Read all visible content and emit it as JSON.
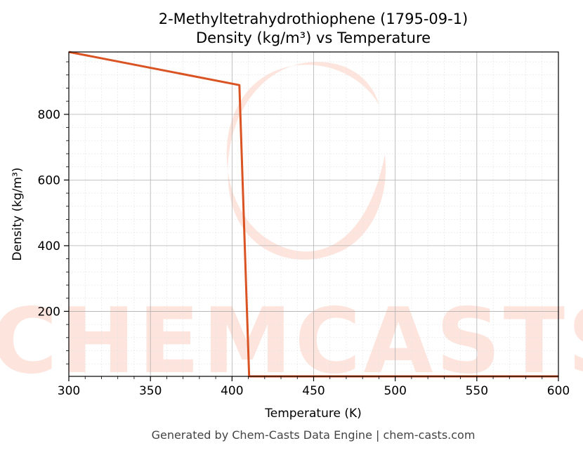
{
  "chart_data": {
    "type": "line",
    "title_line1": "2-Methyltetrahydrothiophene (1795-09-1)",
    "title_line2": "Density (kg/m³) vs Temperature",
    "xlabel": "Temperature (K)",
    "ylabel": "Density (kg/m³)",
    "xlim": [
      300,
      600
    ],
    "ylim": [
      2,
      990
    ],
    "x_ticks": [
      300,
      350,
      400,
      450,
      500,
      550,
      600
    ],
    "y_ticks": [
      200,
      400,
      600,
      800
    ],
    "grid": true,
    "series": [
      {
        "color": "#d95323",
        "x": [
          300,
          404.5,
          410.5,
          411,
          600
        ],
        "y": [
          990,
          889,
          2,
          2,
          2
        ]
      }
    ],
    "watermark": "CHEMCASTS",
    "watermark_color": "#fde0d8"
  },
  "footer": "Generated by Chem-Casts Data Engine | chem-casts.com"
}
